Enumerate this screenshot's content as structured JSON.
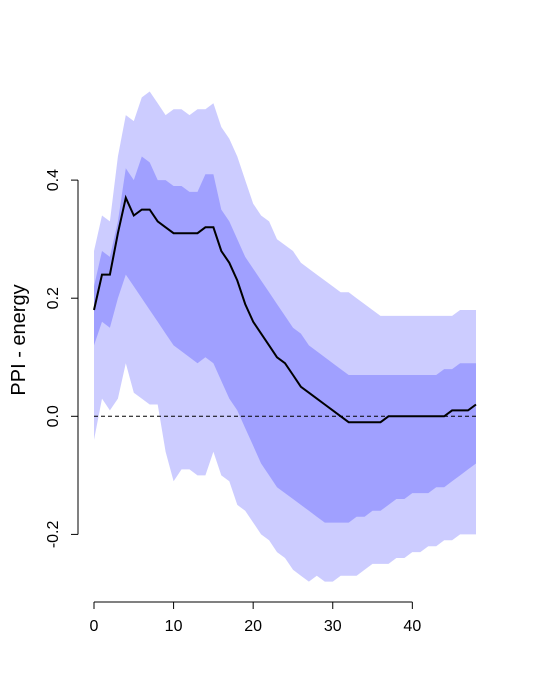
{
  "chart_data": {
    "type": "area",
    "title": "",
    "xlabel": "",
    "ylabel": "PPI - energy",
    "xlim": [
      0,
      48
    ],
    "ylim": [
      -0.3,
      0.54
    ],
    "xticks": [
      0,
      10,
      20,
      30,
      40
    ],
    "yticks": [
      -0.2,
      0.0,
      0.2,
      0.4
    ],
    "xtick_labels": [
      "0",
      "10",
      "20",
      "30",
      "40"
    ],
    "ytick_labels": [
      "-0.2",
      "0.0",
      "0.2",
      "0.4"
    ],
    "grid": false,
    "reference_line": {
      "y": 0,
      "style": "dashed"
    },
    "x": [
      0,
      1,
      2,
      3,
      4,
      5,
      6,
      7,
      8,
      9,
      10,
      11,
      12,
      13,
      14,
      15,
      16,
      17,
      18,
      19,
      20,
      21,
      22,
      23,
      24,
      25,
      26,
      27,
      28,
      29,
      30,
      31,
      32,
      33,
      34,
      35,
      36,
      37,
      38,
      39,
      40,
      41,
      42,
      43,
      44,
      45,
      46,
      47,
      48
    ],
    "series": [
      {
        "role": "outer_upper",
        "values": [
          0.28,
          0.34,
          0.33,
          0.44,
          0.51,
          0.5,
          0.54,
          0.55,
          0.53,
          0.51,
          0.52,
          0.52,
          0.51,
          0.52,
          0.52,
          0.53,
          0.49,
          0.47,
          0.44,
          0.4,
          0.36,
          0.34,
          0.33,
          0.3,
          0.29,
          0.28,
          0.26,
          0.25,
          0.24,
          0.23,
          0.22,
          0.21,
          0.21,
          0.2,
          0.19,
          0.18,
          0.17,
          0.17,
          0.17,
          0.17,
          0.17,
          0.17,
          0.17,
          0.17,
          0.17,
          0.17,
          0.18,
          0.18,
          0.18
        ]
      },
      {
        "role": "inner_upper",
        "values": [
          0.22,
          0.28,
          0.27,
          0.33,
          0.42,
          0.4,
          0.44,
          0.43,
          0.4,
          0.4,
          0.39,
          0.39,
          0.38,
          0.38,
          0.41,
          0.41,
          0.35,
          0.33,
          0.3,
          0.27,
          0.25,
          0.23,
          0.21,
          0.19,
          0.17,
          0.15,
          0.14,
          0.12,
          0.11,
          0.1,
          0.09,
          0.08,
          0.07,
          0.07,
          0.07,
          0.07,
          0.07,
          0.07,
          0.07,
          0.07,
          0.07,
          0.07,
          0.07,
          0.07,
          0.08,
          0.08,
          0.09,
          0.09,
          0.09
        ]
      },
      {
        "role": "median",
        "values": [
          0.18,
          0.24,
          0.24,
          0.31,
          0.37,
          0.34,
          0.35,
          0.35,
          0.33,
          0.32,
          0.31,
          0.31,
          0.31,
          0.31,
          0.32,
          0.32,
          0.28,
          0.26,
          0.23,
          0.19,
          0.16,
          0.14,
          0.12,
          0.1,
          0.09,
          0.07,
          0.05,
          0.04,
          0.03,
          0.02,
          0.01,
          0.0,
          -0.01,
          -0.01,
          -0.01,
          -0.01,
          -0.01,
          0.0,
          0.0,
          0.0,
          0.0,
          0.0,
          0.0,
          0.0,
          0.0,
          0.01,
          0.01,
          0.01,
          0.02
        ]
      },
      {
        "role": "inner_lower",
        "values": [
          0.12,
          0.16,
          0.15,
          0.2,
          0.24,
          0.22,
          0.2,
          0.18,
          0.16,
          0.14,
          0.12,
          0.11,
          0.1,
          0.09,
          0.1,
          0.09,
          0.06,
          0.03,
          0.01,
          -0.02,
          -0.05,
          -0.08,
          -0.1,
          -0.12,
          -0.13,
          -0.14,
          -0.15,
          -0.16,
          -0.17,
          -0.18,
          -0.18,
          -0.18,
          -0.18,
          -0.17,
          -0.17,
          -0.16,
          -0.16,
          -0.15,
          -0.14,
          -0.14,
          -0.13,
          -0.13,
          -0.13,
          -0.12,
          -0.12,
          -0.11,
          -0.1,
          -0.09,
          -0.08
        ]
      },
      {
        "role": "outer_lower",
        "values": [
          -0.04,
          0.03,
          0.01,
          0.03,
          0.09,
          0.04,
          0.03,
          0.02,
          0.02,
          -0.06,
          -0.11,
          -0.09,
          -0.09,
          -0.1,
          -0.1,
          -0.06,
          -0.1,
          -0.11,
          -0.15,
          -0.16,
          -0.18,
          -0.2,
          -0.21,
          -0.23,
          -0.24,
          -0.26,
          -0.27,
          -0.28,
          -0.27,
          -0.28,
          -0.28,
          -0.27,
          -0.27,
          -0.27,
          -0.26,
          -0.25,
          -0.25,
          -0.25,
          -0.24,
          -0.24,
          -0.23,
          -0.23,
          -0.22,
          -0.22,
          -0.21,
          -0.21,
          -0.2,
          -0.2,
          -0.2
        ]
      }
    ],
    "colors": {
      "outer_band": "#ccccff",
      "inner_band": "#a0a0ff",
      "median_line": "#000000",
      "axis": "#000000",
      "background": "#ffffff"
    }
  }
}
